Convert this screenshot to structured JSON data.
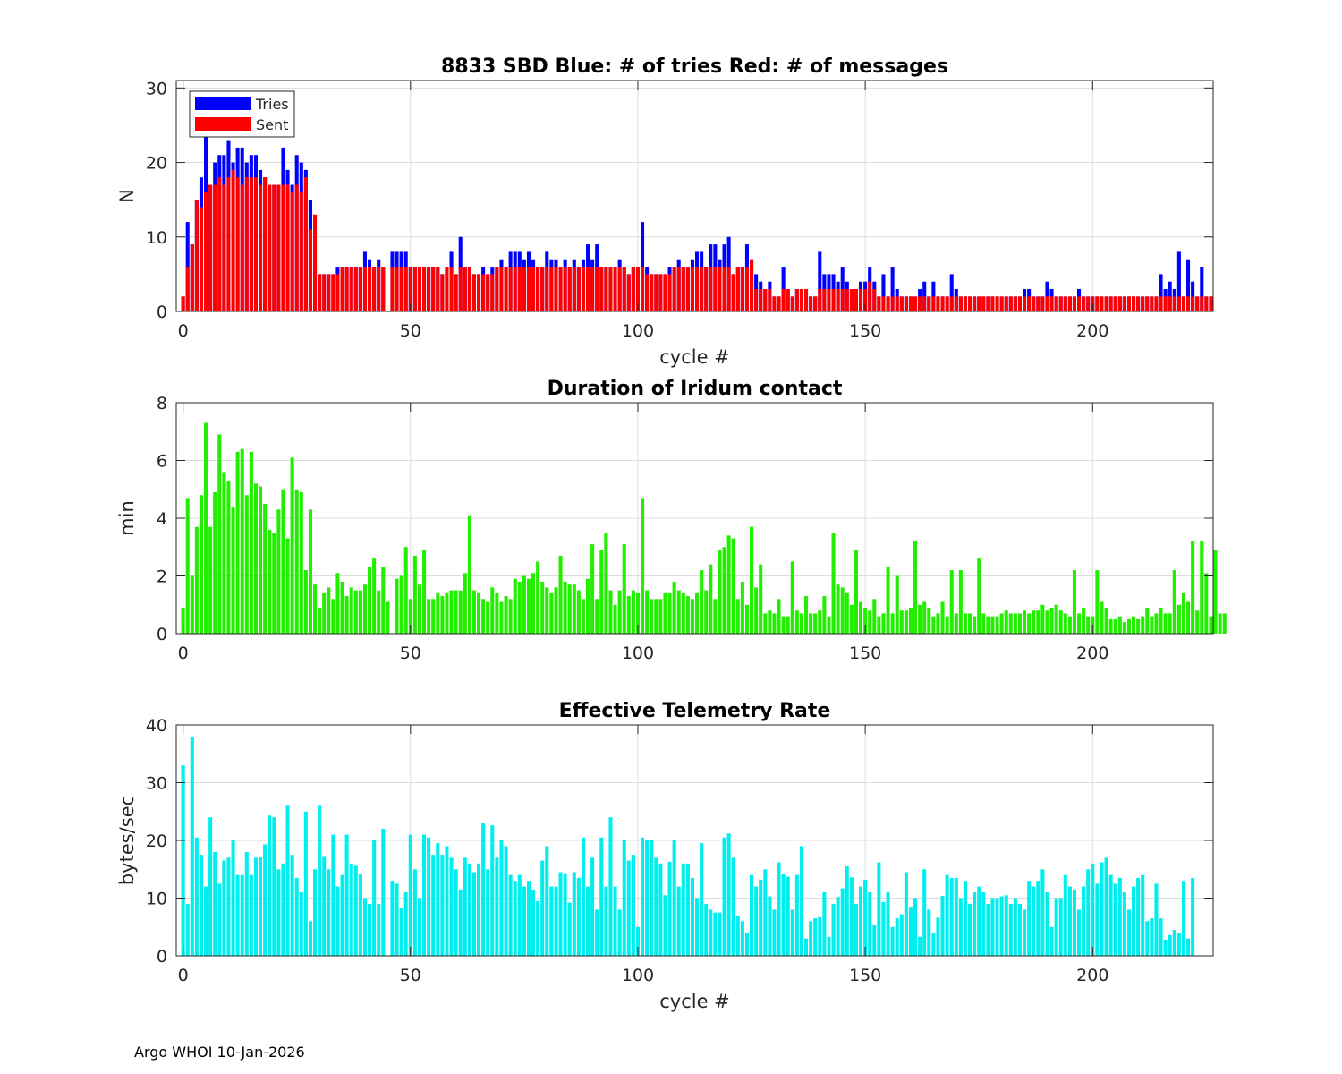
{
  "footer": "Argo WHOI 10-Jan-2026",
  "colors": {
    "tries": "#0000ff",
    "sent": "#ff0000",
    "duration": "#22ee00",
    "rate": "#00eeee",
    "grid": "#dcdcdc",
    "axis": "#262626"
  },
  "chart_data": [
    {
      "type": "bar",
      "title": "8833 SBD  Blue: # of tries   Red: # of messages",
      "xlabel": "cycle #",
      "ylabel": "N",
      "xlim": [
        -1.5,
        226.5
      ],
      "ylim": [
        0,
        31
      ],
      "xticks": [
        0,
        50,
        100,
        150,
        200
      ],
      "yticks": [
        0,
        10,
        20,
        30
      ],
      "grid": true,
      "legend": {
        "position": "top-left",
        "entries": [
          "Tries",
          "Sent"
        ]
      },
      "x_start": 0,
      "series": [
        {
          "name": "Tries",
          "values": [
            2,
            12,
            9,
            15,
            18,
            24,
            17,
            20,
            21,
            21,
            23,
            20,
            22,
            22,
            20,
            21,
            21,
            19,
            18,
            17,
            17,
            17,
            22,
            19,
            17,
            21,
            20,
            19,
            15,
            6,
            5,
            5,
            5,
            5,
            6,
            6,
            6,
            6,
            6,
            6,
            8,
            7,
            6,
            7,
            6,
            0,
            8,
            8,
            8,
            8,
            6,
            6,
            6,
            6,
            6,
            6,
            6,
            5,
            6,
            8,
            5,
            10,
            6,
            6,
            5,
            5,
            6,
            5,
            6,
            6,
            7,
            6,
            8,
            8,
            8,
            7,
            8,
            7,
            6,
            6,
            8,
            7,
            7,
            6,
            7,
            6,
            7,
            6,
            7,
            9,
            7,
            9,
            6,
            6,
            6,
            6,
            7,
            6,
            5,
            6,
            6,
            12,
            6,
            5,
            5,
            5,
            5,
            6,
            6,
            7,
            6,
            6,
            7,
            8,
            8,
            6,
            9,
            9,
            7,
            9,
            10,
            5,
            6,
            6,
            9,
            7,
            5,
            4,
            3,
            4,
            2,
            2,
            6,
            3,
            2,
            3,
            3,
            3,
            2,
            2,
            8,
            5,
            5,
            5,
            4,
            6,
            4,
            3,
            3,
            4,
            4,
            6,
            4,
            2,
            5,
            2,
            6,
            3,
            2,
            2,
            2,
            2,
            3,
            4,
            2,
            4,
            2,
            2,
            2,
            5,
            3,
            2,
            2,
            2,
            2,
            2,
            2,
            2,
            2,
            2,
            2,
            2,
            2,
            2,
            2,
            3,
            3,
            2,
            2,
            2,
            4,
            3,
            2,
            2,
            2,
            2,
            2,
            3,
            2,
            2,
            2,
            2,
            2,
            2,
            2,
            2,
            2,
            2,
            2,
            2,
            2,
            2,
            2,
            2,
            2,
            5,
            3,
            4,
            3,
            8,
            2,
            7,
            4,
            2,
            6,
            2,
            2
          ]
        },
        {
          "name": "Sent",
          "values": [
            2,
            6,
            9,
            15,
            14,
            16,
            17,
            17,
            18,
            17,
            18,
            19,
            18,
            17,
            18,
            18,
            18,
            17,
            18,
            17,
            17,
            17,
            17,
            17,
            16,
            17,
            16,
            18,
            11,
            13,
            5,
            5,
            5,
            5,
            5,
            6,
            6,
            6,
            6,
            6,
            6,
            6,
            6,
            6,
            6,
            0,
            6,
            6,
            6,
            6,
            6,
            6,
            6,
            6,
            6,
            6,
            6,
            5,
            6,
            6,
            5,
            6,
            6,
            6,
            5,
            5,
            5,
            5,
            5,
            6,
            6,
            6,
            6,
            6,
            6,
            6,
            6,
            6,
            6,
            6,
            6,
            6,
            6,
            6,
            6,
            6,
            6,
            6,
            6,
            6,
            6,
            6,
            6,
            6,
            6,
            6,
            6,
            6,
            5,
            6,
            6,
            6,
            5,
            5,
            5,
            5,
            5,
            5,
            6,
            6,
            6,
            6,
            6,
            6,
            6,
            6,
            6,
            6,
            6,
            6,
            6,
            5,
            6,
            6,
            6,
            7,
            3,
            3,
            3,
            3,
            2,
            2,
            3,
            3,
            2,
            3,
            3,
            3,
            2,
            2,
            3,
            3,
            3,
            3,
            3,
            3,
            3,
            3,
            3,
            3,
            3,
            4,
            3,
            2,
            2,
            2,
            2,
            2,
            2,
            2,
            2,
            2,
            2,
            2,
            2,
            2,
            2,
            2,
            2,
            2,
            2,
            2,
            2,
            2,
            2,
            2,
            2,
            2,
            2,
            2,
            2,
            2,
            2,
            2,
            2,
            2,
            2,
            2,
            2,
            2,
            2,
            2,
            2,
            2,
            2,
            2,
            2,
            2,
            2,
            2,
            2,
            2,
            2,
            2,
            2,
            2,
            2,
            2,
            2,
            2,
            2,
            2,
            2,
            2,
            2,
            2,
            2,
            2,
            2,
            2,
            2,
            2,
            2,
            2,
            2,
            2,
            2
          ]
        }
      ]
    },
    {
      "type": "bar",
      "title": "Duration of Iridum contact",
      "xlabel": "",
      "ylabel": "min",
      "xlim": [
        -1.5,
        226.5
      ],
      "ylim": [
        0,
        8
      ],
      "xticks": [
        0,
        50,
        100,
        150,
        200
      ],
      "yticks": [
        0,
        2,
        4,
        6,
        8
      ],
      "grid": true,
      "x_start": 0,
      "values": [
        0.9,
        4.7,
        2.0,
        3.7,
        4.8,
        7.3,
        3.7,
        4.9,
        6.9,
        5.6,
        5.3,
        4.4,
        6.3,
        6.4,
        4.8,
        6.3,
        5.2,
        5.1,
        4.5,
        3.6,
        3.5,
        4.3,
        5.0,
        3.3,
        6.1,
        5.0,
        4.9,
        2.2,
        4.3,
        1.7,
        0.9,
        1.4,
        1.6,
        1.2,
        2.1,
        1.8,
        1.3,
        1.6,
        1.5,
        1.5,
        1.7,
        2.3,
        2.6,
        1.5,
        2.3,
        1.1,
        0.0,
        1.9,
        2.0,
        3.0,
        1.2,
        2.7,
        1.7,
        2.9,
        1.2,
        1.2,
        1.4,
        1.3,
        1.4,
        1.5,
        1.5,
        1.5,
        2.1,
        4.1,
        1.5,
        1.4,
        1.2,
        1.1,
        1.6,
        1.4,
        1.1,
        1.3,
        1.2,
        1.9,
        1.8,
        2.0,
        1.9,
        2.1,
        2.5,
        1.8,
        1.6,
        1.4,
        1.6,
        2.7,
        1.8,
        1.7,
        1.7,
        1.5,
        1.2,
        1.9,
        3.1,
        1.2,
        2.9,
        3.5,
        1.5,
        1.0,
        1.5,
        3.1,
        1.3,
        1.5,
        1.4,
        4.7,
        1.5,
        1.2,
        1.2,
        1.2,
        1.4,
        1.4,
        1.8,
        1.5,
        1.4,
        1.3,
        1.2,
        1.4,
        2.2,
        1.5,
        2.4,
        1.2,
        2.9,
        3.0,
        3.4,
        3.3,
        1.2,
        1.8,
        1.0,
        3.7,
        1.6,
        2.4,
        0.7,
        0.8,
        0.7,
        1.2,
        0.6,
        0.6,
        2.5,
        0.8,
        0.7,
        1.3,
        0.7,
        0.7,
        0.8,
        1.3,
        0.6,
        3.5,
        1.7,
        1.6,
        1.4,
        1.0,
        2.9,
        1.1,
        0.9,
        0.8,
        1.2,
        0.6,
        0.7,
        2.3,
        0.7,
        2.0,
        0.8,
        0.8,
        0.9,
        3.2,
        1.0,
        1.1,
        0.9,
        0.6,
        0.7,
        1.1,
        0.6,
        2.2,
        0.7,
        2.2,
        0.7,
        0.7,
        0.6,
        2.6,
        0.7,
        0.6,
        0.6,
        0.6,
        0.7,
        0.8,
        0.7,
        0.7,
        0.7,
        0.8,
        0.7,
        0.8,
        0.8,
        1.0,
        0.8,
        0.9,
        1.0,
        0.8,
        0.7,
        0.6,
        2.2,
        0.7,
        0.9,
        0.6,
        0.6,
        2.2,
        1.1,
        0.9,
        0.5,
        0.5,
        0.6,
        0.4,
        0.5,
        0.6,
        0.5,
        0.6,
        0.9,
        0.6,
        0.7,
        0.9,
        0.7,
        0.7,
        2.2,
        1.0,
        1.4,
        1.1,
        3.2,
        0.8,
        3.2,
        2.1,
        0.6,
        2.9,
        0.7,
        0.7
      ]
    },
    {
      "type": "bar",
      "title": "Effective Telemetry Rate",
      "xlabel": "cycle #",
      "ylabel": "bytes/sec",
      "xlim": [
        -1.5,
        226.5
      ],
      "ylim": [
        0,
        40
      ],
      "xticks": [
        0,
        50,
        100,
        150,
        200
      ],
      "yticks": [
        0,
        10,
        20,
        30,
        40
      ],
      "grid": true,
      "x_start": 0,
      "values": [
        33,
        9,
        38,
        20.5,
        17.5,
        12,
        24,
        18,
        12.5,
        16.5,
        17,
        20,
        14,
        14,
        18,
        14,
        17,
        17.2,
        19.3,
        24.3,
        24,
        15,
        16,
        26,
        17.5,
        13.5,
        11,
        25,
        6,
        15,
        26,
        17.3,
        15,
        21,
        12,
        14,
        21,
        16,
        15.6,
        14.2,
        10,
        9,
        20,
        9,
        22,
        0,
        13,
        12.5,
        8.3,
        11,
        21,
        15,
        10,
        21,
        20.5,
        17.5,
        19.5,
        17.5,
        19,
        17,
        15,
        11.5,
        17,
        16,
        14.5,
        16,
        23,
        15,
        22.6,
        17,
        20,
        19,
        14,
        13,
        14,
        12,
        13,
        11.5,
        9.5,
        16.5,
        19,
        12,
        12,
        14.5,
        14.3,
        9.2,
        14.5,
        13.5,
        20.5,
        12,
        17,
        8,
        20.5,
        12,
        24,
        12,
        8,
        20,
        16.5,
        17.5,
        5,
        20.5,
        20,
        20,
        17,
        16,
        10.5,
        16.3,
        20,
        12,
        16,
        16,
        13.5,
        10,
        19.5,
        9,
        8,
        7.5,
        7.5,
        20.5,
        21.2,
        17,
        7,
        6,
        4,
        14,
        12,
        13.2,
        15,
        10.3,
        8,
        16.2,
        14.2,
        13.7,
        8,
        14,
        19,
        3,
        6,
        6.5,
        6.7,
        11,
        3.3,
        9,
        10.2,
        11.7,
        15.5,
        13.6,
        9,
        12,
        13.2,
        11,
        5.3,
        16.2,
        9.3,
        11,
        5,
        6.5,
        7.2,
        14.5,
        8.5,
        10,
        3.3,
        15,
        8,
        4,
        6.6,
        10.4,
        14,
        13.5,
        13.5,
        10,
        13,
        9,
        11,
        12,
        11,
        9,
        10,
        10,
        10.3,
        10.5,
        9,
        10,
        9,
        8,
        13,
        12,
        13,
        15,
        11,
        5,
        10,
        10,
        14,
        12,
        11.5,
        8,
        12,
        15,
        16,
        12.5,
        16.2,
        17,
        14,
        12.5,
        13.5,
        11,
        8,
        12,
        13.5,
        14,
        6,
        6.5,
        12.5,
        6.5,
        2.8,
        3.6,
        4.5,
        4,
        13,
        3,
        13.5
      ]
    }
  ]
}
